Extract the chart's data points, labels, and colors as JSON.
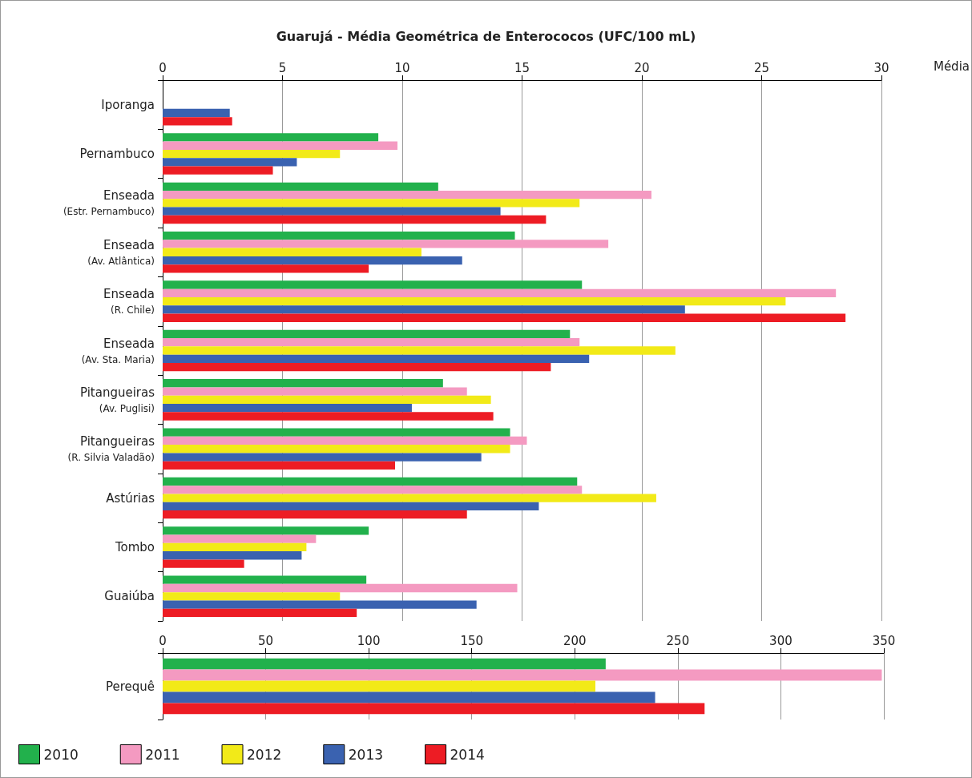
{
  "chart_data": [
    {
      "type": "bar",
      "orientation": "horizontal",
      "title": "Guarujá - Média Geométrica de Enterococos (UFC/100 mL)",
      "xlabel": "Média",
      "grid": "x",
      "legend": "bottom",
      "categories": [
        "Iporanga",
        "Pernambuco",
        "Enseada\n(Estr. Pernambuco)",
        "Enseada\n(Av. Atlântica)",
        "Enseada\n(R. Chile)",
        "Enseada\n(Av. Sta. Maria)",
        "Pitangueiras\n(Av. Puglisi)",
        "Pitangueiras\n(R. Silvia Valadão)",
        "Astúrias",
        "Tombo",
        "Guaiúba"
      ],
      "xlim": [
        0,
        30
      ],
      "xticks": [
        0,
        5,
        10,
        15,
        20,
        25,
        30
      ],
      "series": [
        {
          "name": "2010",
          "color": "#22b14c",
          "values": [
            null,
            9.0,
            11.5,
            14.7,
            17.5,
            17.0,
            11.7,
            14.5,
            17.3,
            8.6,
            8.5
          ]
        },
        {
          "name": "2011",
          "color": "#f49ac1",
          "values": [
            null,
            9.8,
            20.4,
            18.6,
            28.1,
            17.4,
            12.7,
            15.2,
            17.5,
            6.4,
            14.8
          ]
        },
        {
          "name": "2012",
          "color": "#f2ea18",
          "values": [
            null,
            7.4,
            17.4,
            10.8,
            26.0,
            21.4,
            13.7,
            14.5,
            20.6,
            6.0,
            7.4
          ]
        },
        {
          "name": "2013",
          "color": "#3a62b0",
          "values": [
            2.8,
            5.6,
            14.1,
            12.5,
            21.8,
            17.8,
            10.4,
            13.3,
            15.7,
            5.8,
            13.1
          ]
        },
        {
          "name": "2014",
          "color": "#ed1c24",
          "values": [
            2.9,
            4.6,
            16.0,
            8.6,
            28.5,
            16.2,
            13.8,
            9.7,
            12.7,
            3.4,
            8.1
          ]
        }
      ]
    },
    {
      "type": "bar",
      "orientation": "horizontal",
      "grid": "x",
      "categories": [
        "Perequê"
      ],
      "xlim": [
        0,
        350
      ],
      "xticks": [
        0,
        50,
        100,
        150,
        200,
        250,
        300,
        350
      ],
      "series": [
        {
          "color": "#22b14c",
          "values": [
            215
          ]
        },
        {
          "color": "#f49ac1",
          "values": [
            349
          ]
        },
        {
          "color": "#f2ea18",
          "values": [
            210
          ]
        },
        {
          "color": "#3a62b0",
          "values": [
            239
          ]
        },
        {
          "color": "#ed1c24",
          "values": [
            263
          ]
        }
      ]
    }
  ]
}
